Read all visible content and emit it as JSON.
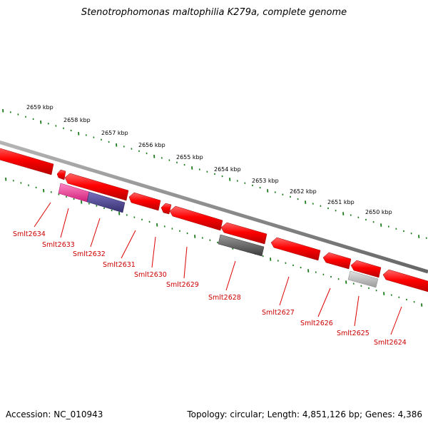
{
  "title": "Stenotrophomonas maltophilia K279a, complete genome",
  "accession_text": "Accession: NC_010943",
  "summary_text": "Topology: circular; Length: 4,851,126 bp; Genes: 4,386",
  "scale_ticks": [
    "2659 kbp",
    "2658 kbp",
    "2657 kbp",
    "2656 kbp",
    "2655 kbp",
    "2654 kbp",
    "2653 kbp",
    "2652 kbp",
    "2651 kbp",
    "2650 kbp"
  ],
  "genes": [
    {
      "label": "Smlt2634"
    },
    {
      "label": "Smlt2633"
    },
    {
      "label": "Smlt2632"
    },
    {
      "label": "Smlt2631"
    },
    {
      "label": "Smlt2630"
    },
    {
      "label": "Smlt2629"
    },
    {
      "label": "Smlt2628"
    },
    {
      "label": "Smlt2627"
    },
    {
      "label": "Smlt2626"
    },
    {
      "label": "Smlt2625"
    },
    {
      "label": "Smlt2624"
    }
  ],
  "colors": {
    "gene": "#ee0000",
    "gene_label": "#cc0000",
    "backbone": "#888888",
    "ticks": "#1a7a1a",
    "rna_magenta": "#e8338a",
    "rna_purple": "#4a3f8e",
    "feature_dark_gray": "#555555",
    "feature_light_gray": "#bbbbbb"
  }
}
